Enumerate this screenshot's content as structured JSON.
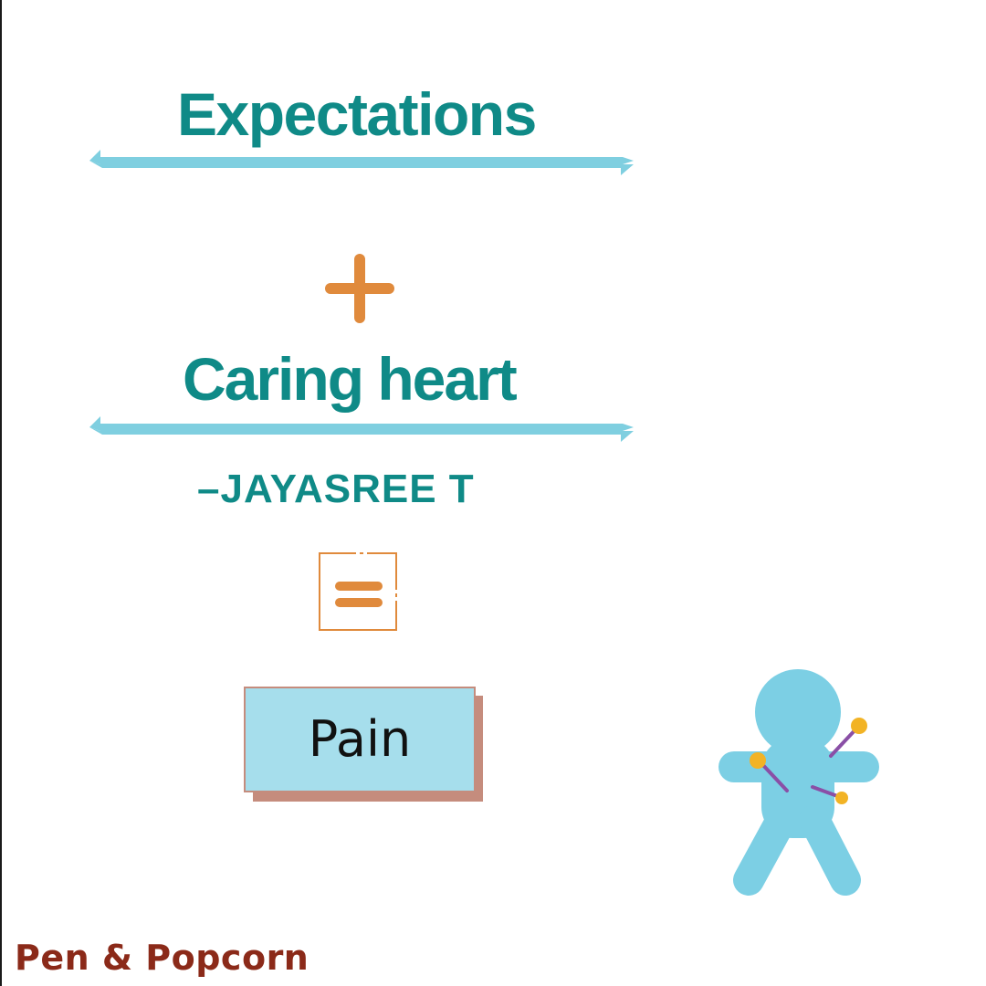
{
  "quote": {
    "numerator": "Expectations",
    "addend": "Caring heart",
    "author": "–JAYASREE T",
    "result": "Pain"
  },
  "operators": {
    "plus_icon": "plus-icon",
    "equals_icon": "equals-icon"
  },
  "illustration": {
    "icon": "voodoo-doll-with-pins-icon"
  },
  "brand": {
    "name": "Pen & Popcorn"
  },
  "colors": {
    "teal_text": "#0f8a87",
    "divider_blue": "#7fcfe0",
    "operator_orange": "#e08a3c",
    "pain_fill": "#a6deec",
    "pain_shadow": "#c58c7d",
    "doll_blue": "#7ccfe4",
    "pin_head": "#f2b325",
    "pin_needle": "#8a4fa6",
    "brand_red": "#8b2a19"
  }
}
